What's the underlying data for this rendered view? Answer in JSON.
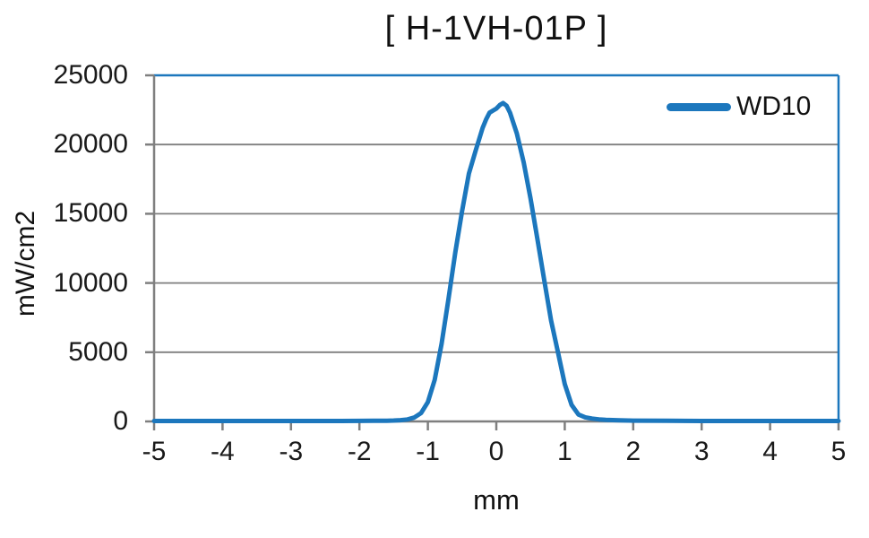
{
  "chart_data": {
    "type": "line",
    "title": "[ H-1VH-01P ]",
    "xlabel": "mm",
    "ylabel": "mW/cm2",
    "xlim": [
      -5,
      5
    ],
    "ylim": [
      0,
      25000
    ],
    "xticks": [
      -5,
      -4,
      -3,
      -2,
      -1,
      0,
      1,
      2,
      3,
      4,
      5
    ],
    "yticks": [
      0,
      5000,
      10000,
      15000,
      20000,
      25000
    ],
    "grid": "horizontal-gridlines-only",
    "legend_position": "top-right-inside",
    "colors": {
      "series": "#1C77BD",
      "plot_border": "#1C77BD",
      "gridline": "#7F7F7F",
      "axis": "#7F7F7F",
      "text": "#1A1A1A",
      "background": "#FFFFFF"
    },
    "series": [
      {
        "name": "WD10",
        "points": [
          [
            -5,
            30
          ],
          [
            -4.5,
            30
          ],
          [
            -4,
            30
          ],
          [
            -3.5,
            30
          ],
          [
            -3,
            30
          ],
          [
            -2.5,
            35
          ],
          [
            -2,
            40
          ],
          [
            -1.8,
            45
          ],
          [
            -1.6,
            55
          ],
          [
            -1.5,
            65
          ],
          [
            -1.4,
            90
          ],
          [
            -1.3,
            140
          ],
          [
            -1.2,
            280
          ],
          [
            -1.1,
            600
          ],
          [
            -1,
            1400
          ],
          [
            -0.9,
            3000
          ],
          [
            -0.8,
            5600
          ],
          [
            -0.7,
            8800
          ],
          [
            -0.6,
            12200
          ],
          [
            -0.5,
            15200
          ],
          [
            -0.4,
            17900
          ],
          [
            -0.3,
            19600
          ],
          [
            -0.2,
            21200
          ],
          [
            -0.15,
            21800
          ],
          [
            -0.1,
            22300
          ],
          [
            -0.05,
            22450
          ],
          [
            0,
            22600
          ],
          [
            0.05,
            22850
          ],
          [
            0.1,
            23000
          ],
          [
            0.15,
            22800
          ],
          [
            0.2,
            22300
          ],
          [
            0.3,
            20800
          ],
          [
            0.4,
            18700
          ],
          [
            0.5,
            16100
          ],
          [
            0.6,
            13200
          ],
          [
            0.7,
            10200
          ],
          [
            0.8,
            7300
          ],
          [
            0.9,
            5000
          ],
          [
            1,
            2700
          ],
          [
            1.1,
            1200
          ],
          [
            1.2,
            500
          ],
          [
            1.3,
            300
          ],
          [
            1.4,
            210
          ],
          [
            1.5,
            150
          ],
          [
            1.6,
            110
          ],
          [
            1.8,
            80
          ],
          [
            2,
            60
          ],
          [
            2.5,
            45
          ],
          [
            3,
            35
          ],
          [
            3.5,
            30
          ],
          [
            4,
            30
          ],
          [
            4.5,
            30
          ],
          [
            5,
            30
          ]
        ]
      }
    ]
  }
}
